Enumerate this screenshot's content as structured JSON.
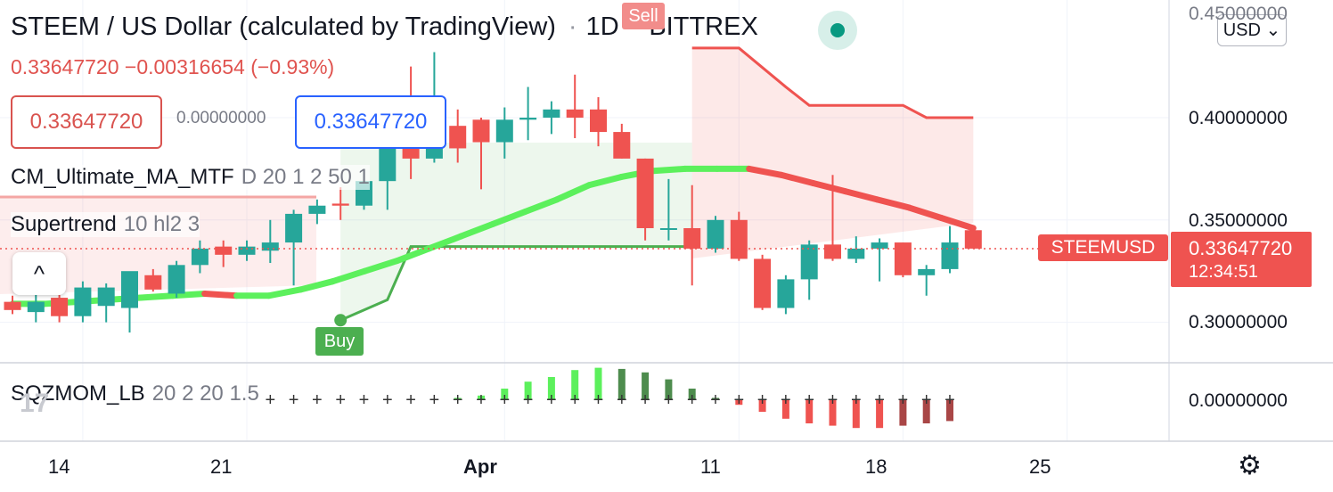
{
  "header": {
    "symbol_title": "STEEM / US Dollar (calculated by TradingView)",
    "interval": "1D",
    "exchange": "BITTREX",
    "last_price": "0.33647720",
    "change": "−0.00316654",
    "change_pct": "(−0.93%)"
  },
  "trade": {
    "sell_price": "0.33647720",
    "spread": "0.00000000",
    "buy_price": "0.33647720"
  },
  "indicators": {
    "ma": {
      "name": "CM_Ultimate_MA_MTF",
      "params": "D 20 1 2 50 1"
    },
    "supertrend": {
      "name": "Supertrend",
      "params": "10 hl2 3"
    },
    "squeeze": {
      "name": "SQZMOM_LB",
      "params": "20 2 20 1.5"
    }
  },
  "controls": {
    "collapse": "^",
    "currency": "USD",
    "currency_chevron": "⌄",
    "settings_icon": "⚙"
  },
  "price_axis": {
    "labels": [
      "0.40000000",
      "0.35000000",
      "0.30000000"
    ],
    "top_label": "0.45000000",
    "osc_label": "0.00000000"
  },
  "price_tag": {
    "symbol": "STEEMUSD",
    "price": "0.33647720",
    "countdown": "12:34:51"
  },
  "signals": {
    "sell": "Sell",
    "buy": "Buy"
  },
  "time_axis": {
    "labels": [
      "14",
      "21",
      "Apr",
      "11",
      "18",
      "25"
    ]
  },
  "colors": {
    "up": "#26a69a",
    "down": "#ef5350",
    "ma_up": "#5cf05c",
    "ma_down": "#ef5350",
    "st_up": "#4caf50",
    "st_down": "#ef5350",
    "accent": "#2962ff"
  },
  "chart_data": {
    "type": "candlestick",
    "y_range": [
      0.27,
      0.45
    ],
    "x_start_date": "2022-03-11",
    "x_end_date": "2022-04-27",
    "candles": [
      {
        "d": "2022-03-11",
        "o": 0.31,
        "h": 0.313,
        "l": 0.304,
        "c": 0.306
      },
      {
        "d": "2022-03-12",
        "o": 0.305,
        "h": 0.315,
        "l": 0.3,
        "c": 0.31
      },
      {
        "d": "2022-03-13",
        "o": 0.312,
        "h": 0.32,
        "l": 0.3,
        "c": 0.303
      },
      {
        "d": "2022-03-14",
        "o": 0.303,
        "h": 0.32,
        "l": 0.3,
        "c": 0.317
      },
      {
        "d": "2022-03-15",
        "o": 0.308,
        "h": 0.319,
        "l": 0.3,
        "c": 0.317
      },
      {
        "d": "2022-03-16",
        "o": 0.307,
        "h": 0.324,
        "l": 0.295,
        "c": 0.325
      },
      {
        "d": "2022-03-17",
        "o": 0.323,
        "h": 0.326,
        "l": 0.315,
        "c": 0.316
      },
      {
        "d": "2022-03-18",
        "o": 0.314,
        "h": 0.33,
        "l": 0.312,
        "c": 0.328
      },
      {
        "d": "2022-03-19",
        "o": 0.328,
        "h": 0.34,
        "l": 0.324,
        "c": 0.336
      },
      {
        "d": "2022-03-20",
        "o": 0.337,
        "h": 0.34,
        "l": 0.327,
        "c": 0.333
      },
      {
        "d": "2022-03-21",
        "o": 0.333,
        "h": 0.34,
        "l": 0.33,
        "c": 0.337
      },
      {
        "d": "2022-03-22",
        "o": 0.335,
        "h": 0.35,
        "l": 0.329,
        "c": 0.339
      },
      {
        "d": "2022-03-23",
        "o": 0.339,
        "h": 0.355,
        "l": 0.318,
        "c": 0.353
      },
      {
        "d": "2022-03-24",
        "o": 0.353,
        "h": 0.36,
        "l": 0.348,
        "c": 0.357
      },
      {
        "d": "2022-03-25",
        "o": 0.358,
        "h": 0.366,
        "l": 0.35,
        "c": 0.357
      },
      {
        "d": "2022-03-26",
        "o": 0.357,
        "h": 0.373,
        "l": 0.355,
        "c": 0.369
      },
      {
        "d": "2022-03-27",
        "o": 0.369,
        "h": 0.395,
        "l": 0.355,
        "c": 0.395
      },
      {
        "d": "2022-03-28",
        "o": 0.395,
        "h": 0.425,
        "l": 0.37,
        "c": 0.38
      },
      {
        "d": "2022-03-29",
        "o": 0.38,
        "h": 0.432,
        "l": 0.378,
        "c": 0.386
      },
      {
        "d": "2022-03-30",
        "o": 0.396,
        "h": 0.404,
        "l": 0.378,
        "c": 0.385
      },
      {
        "d": "2022-03-31",
        "o": 0.399,
        "h": 0.4,
        "l": 0.365,
        "c": 0.388
      },
      {
        "d": "2022-04-01",
        "o": 0.388,
        "h": 0.405,
        "l": 0.38,
        "c": 0.399
      },
      {
        "d": "2022-04-02",
        "o": 0.399,
        "h": 0.415,
        "l": 0.389,
        "c": 0.4
      },
      {
        "d": "2022-04-03",
        "o": 0.4,
        "h": 0.408,
        "l": 0.392,
        "c": 0.404
      },
      {
        "d": "2022-04-04",
        "o": 0.404,
        "h": 0.421,
        "l": 0.39,
        "c": 0.4
      },
      {
        "d": "2022-04-05",
        "o": 0.404,
        "h": 0.41,
        "l": 0.386,
        "c": 0.393
      },
      {
        "d": "2022-04-06",
        "o": 0.393,
        "h": 0.397,
        "l": 0.38,
        "c": 0.38
      },
      {
        "d": "2022-04-07",
        "o": 0.38,
        "h": 0.38,
        "l": 0.34,
        "c": 0.346
      },
      {
        "d": "2022-04-08",
        "o": 0.346,
        "h": 0.37,
        "l": 0.34,
        "c": 0.346
      },
      {
        "d": "2022-04-09",
        "o": 0.346,
        "h": 0.367,
        "l": 0.318,
        "c": 0.336
      },
      {
        "d": "2022-04-10",
        "o": 0.336,
        "h": 0.352,
        "l": 0.334,
        "c": 0.35
      },
      {
        "d": "2022-04-11",
        "o": 0.35,
        "h": 0.354,
        "l": 0.33,
        "c": 0.331
      },
      {
        "d": "2022-04-12",
        "o": 0.331,
        "h": 0.333,
        "l": 0.306,
        "c": 0.307
      },
      {
        "d": "2022-04-13",
        "o": 0.307,
        "h": 0.323,
        "l": 0.304,
        "c": 0.321
      },
      {
        "d": "2022-04-14",
        "o": 0.321,
        "h": 0.34,
        "l": 0.311,
        "c": 0.338
      },
      {
        "d": "2022-04-15",
        "o": 0.338,
        "h": 0.372,
        "l": 0.33,
        "c": 0.331
      },
      {
        "d": "2022-04-16",
        "o": 0.331,
        "h": 0.342,
        "l": 0.329,
        "c": 0.336
      },
      {
        "d": "2022-04-17",
        "o": 0.336,
        "h": 0.341,
        "l": 0.32,
        "c": 0.339
      },
      {
        "d": "2022-04-18",
        "o": 0.339,
        "h": 0.339,
        "l": 0.322,
        "c": 0.323
      },
      {
        "d": "2022-04-19",
        "o": 0.323,
        "h": 0.328,
        "l": 0.313,
        "c": 0.326
      },
      {
        "d": "2022-04-20",
        "o": 0.326,
        "h": 0.347,
        "l": 0.324,
        "c": 0.339
      },
      {
        "d": "2022-04-21",
        "o": 0.345,
        "h": 0.347,
        "l": 0.336,
        "c": 0.336
      }
    ],
    "ma": [
      0.309,
      0.309,
      0.31,
      0.311,
      0.312,
      0.313,
      0.314,
      0.313,
      0.313,
      0.316,
      0.32,
      0.325,
      0.33,
      0.336,
      0.342,
      0.348,
      0.354,
      0.36,
      0.367,
      0.371,
      0.374,
      0.375,
      0.375,
      0.375,
      0.372,
      0.368,
      0.364,
      0.36,
      0.356,
      0.351,
      0.346
    ],
    "ma_start_date": "2022-03-11",
    "ma_end_date": "2022-04-21",
    "supertrend_up": [
      [
        0.301,
        "2022-03-25"
      ],
      [
        0.311,
        "2022-03-27"
      ],
      [
        0.337,
        "2022-03-28"
      ],
      [
        0.337,
        "2022-04-09"
      ]
    ],
    "supertrend_down": [
      [
        0.434,
        "2022-04-09"
      ],
      [
        0.434,
        "2022-04-11"
      ],
      [
        0.415,
        "2022-04-13"
      ],
      [
        0.406,
        "2022-04-14"
      ],
      [
        0.406,
        "2022-04-18"
      ],
      [
        0.4,
        "2022-04-19"
      ],
      [
        0.4,
        "2022-04-21"
      ]
    ],
    "squeeze": [
      0,
      0,
      0,
      0,
      0,
      0,
      0,
      0,
      0.1,
      0.2,
      0.5,
      0.8,
      1.0,
      1.3,
      1.4,
      1.35,
      1.2,
      0.9,
      0.5,
      0.1,
      -0.2,
      -0.5,
      -0.8,
      -1.0,
      -1.1,
      -1.2,
      -1.2,
      -1.1,
      -1.0,
      -0.9
    ]
  }
}
